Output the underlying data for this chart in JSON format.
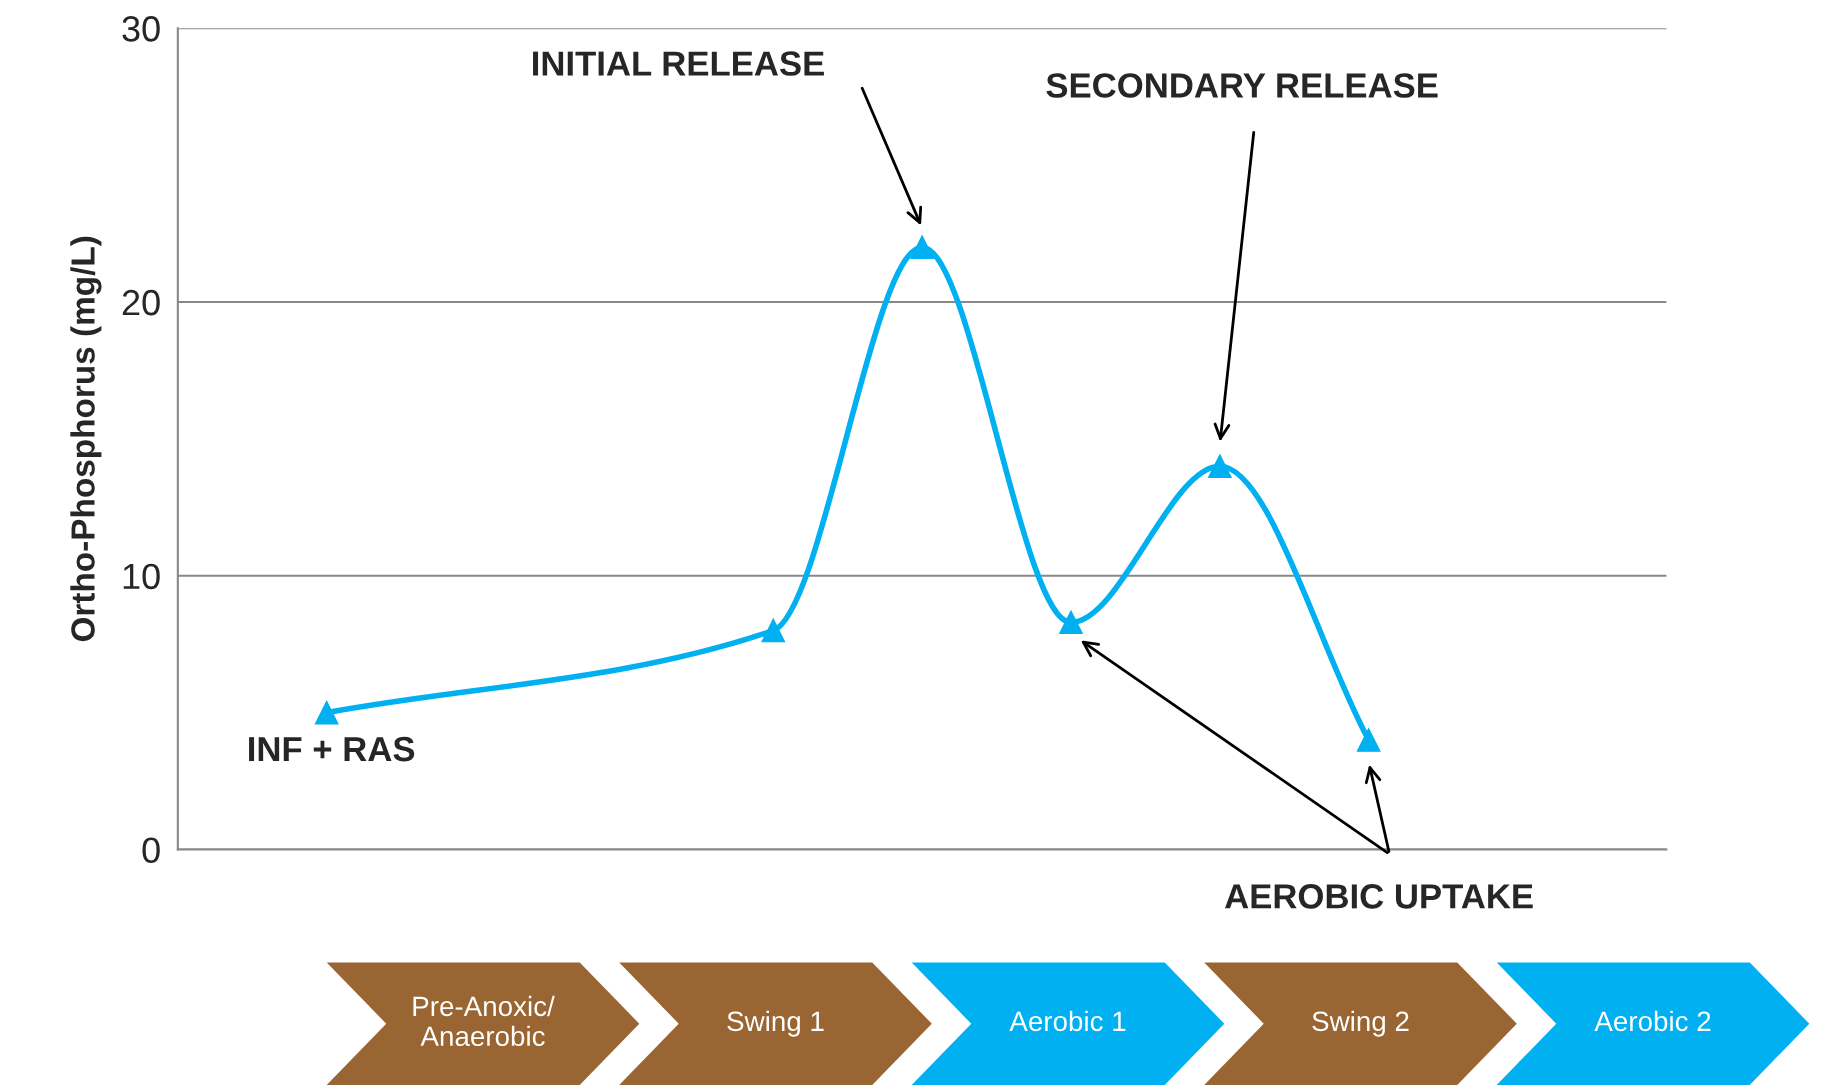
{
  "chart_data": {
    "type": "line",
    "ylabel": "Ortho-Phosphorus (mg/L)",
    "categories": [
      null,
      null,
      null,
      null,
      null,
      null,
      null,
      null
    ],
    "series": [
      {
        "color": "#00b0f0",
        "values": [
          5,
          null,
          null,
          8,
          22,
          8.3,
          14,
          4
        ]
      }
    ],
    "ylim": [
      0,
      30
    ],
    "yticks": [
      0,
      10,
      20,
      30
    ],
    "grid": "y",
    "marker": "triangle",
    "line_style": "solid",
    "tick_labels": "y",
    "annotations": [
      "INITIAL RELEASE",
      "SECONDARY RELEASE",
      "INF + RAS",
      "AEROBIC UPTAKE",
      "Pre-Anoxic/\nAnaerobic",
      "Swing 1",
      "Aerobic 1",
      "Swing 2",
      "Aerobic 2"
    ]
  }
}
